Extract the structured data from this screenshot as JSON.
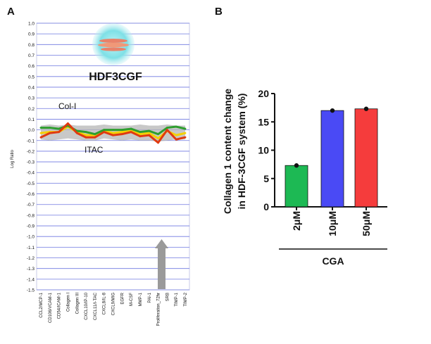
{
  "panels": {
    "a": "A",
    "b": "B"
  },
  "chart_data": [
    {
      "type": "line",
      "panel": "A",
      "title": "HDF3CGF",
      "ylabel": "Log Ratio",
      "ylim": [
        -1.5,
        1.0
      ],
      "yticks": [
        "1.0",
        "0.9",
        "0.8",
        "0.7",
        "0.6",
        "0.5",
        "0.4",
        "0.3",
        "0.2",
        "0.1",
        "0.0",
        "-0.1",
        "-0.2",
        "-0.3",
        "-0.4",
        "-0.5",
        "-0.6",
        "-0.7",
        "-0.8",
        "-0.9",
        "-1.0",
        "-1.1",
        "-1.2",
        "-1.3",
        "-1.4",
        "-1.5"
      ],
      "categories": [
        "CCL2/MCP-1",
        "CD106/VCAM-1",
        "CD54/ICAM-1",
        "Collagen I",
        "Collagen III",
        "CXCL10/IP-10",
        "CXCL11/I-TAC",
        "CXCL8/IL-8",
        "CXCL9/MIG",
        "EGFR",
        "M-CSF",
        "MMP-1",
        "PAI-1",
        "Proliferation_72hr",
        "SRB",
        "TIMP-1",
        "TIMP-2"
      ],
      "annotations": {
        "col1": "Col-I",
        "itac": "ITAC"
      },
      "grid": true,
      "band": {
        "upper": [
          0.04,
          0.05,
          0.04,
          0.05,
          0.04,
          0.04,
          0.04,
          0.05,
          0.04,
          0.04,
          0.04,
          0.05,
          0.04,
          0.04,
          0.05,
          0.04,
          0.04
        ],
        "lower": [
          -0.09,
          -0.1,
          -0.09,
          -0.08,
          -0.09,
          -0.1,
          -0.1,
          -0.08,
          -0.09,
          -0.1,
          -0.09,
          -0.1,
          -0.1,
          -0.11,
          -0.1,
          -0.09,
          -0.09
        ]
      },
      "series": [
        {
          "color": "#f5d000",
          "values": [
            -0.03,
            -0.02,
            -0.02,
            0.03,
            -0.02,
            -0.05,
            -0.05,
            -0.01,
            -0.03,
            -0.02,
            -0.01,
            -0.04,
            -0.03,
            -0.08,
            -0.01,
            -0.05,
            -0.03
          ]
        },
        {
          "color": "#2e9e2e",
          "values": [
            0.02,
            0.02,
            0.01,
            0.04,
            -0.01,
            -0.02,
            -0.04,
            0.0,
            0.0,
            0.0,
            0.01,
            -0.02,
            -0.01,
            -0.04,
            0.02,
            0.03,
            0.01
          ]
        },
        {
          "color": "#e03a10",
          "values": [
            -0.07,
            -0.03,
            -0.02,
            0.06,
            -0.03,
            -0.07,
            -0.07,
            -0.02,
            -0.05,
            -0.04,
            -0.02,
            -0.06,
            -0.05,
            -0.12,
            0.0,
            -0.09,
            -0.07
          ]
        }
      ]
    },
    {
      "type": "bar",
      "panel": "B",
      "categories": [
        "2μM",
        "10μM",
        "50μM"
      ],
      "values": [
        7.3,
        17.0,
        17.3
      ],
      "colors": [
        "#1db954",
        "#4a4af5",
        "#f53c3c"
      ],
      "xlabel": "CGA",
      "ylabel": "Collagen 1 content change in HDF-3CGF system (%)",
      "ylabel_lines": [
        "Collagen 1 content change",
        "in HDF-3CGF system (%)"
      ],
      "ylim": [
        0,
        20
      ],
      "yticks": [
        "0",
        "5",
        "10",
        "15",
        "20"
      ]
    }
  ]
}
